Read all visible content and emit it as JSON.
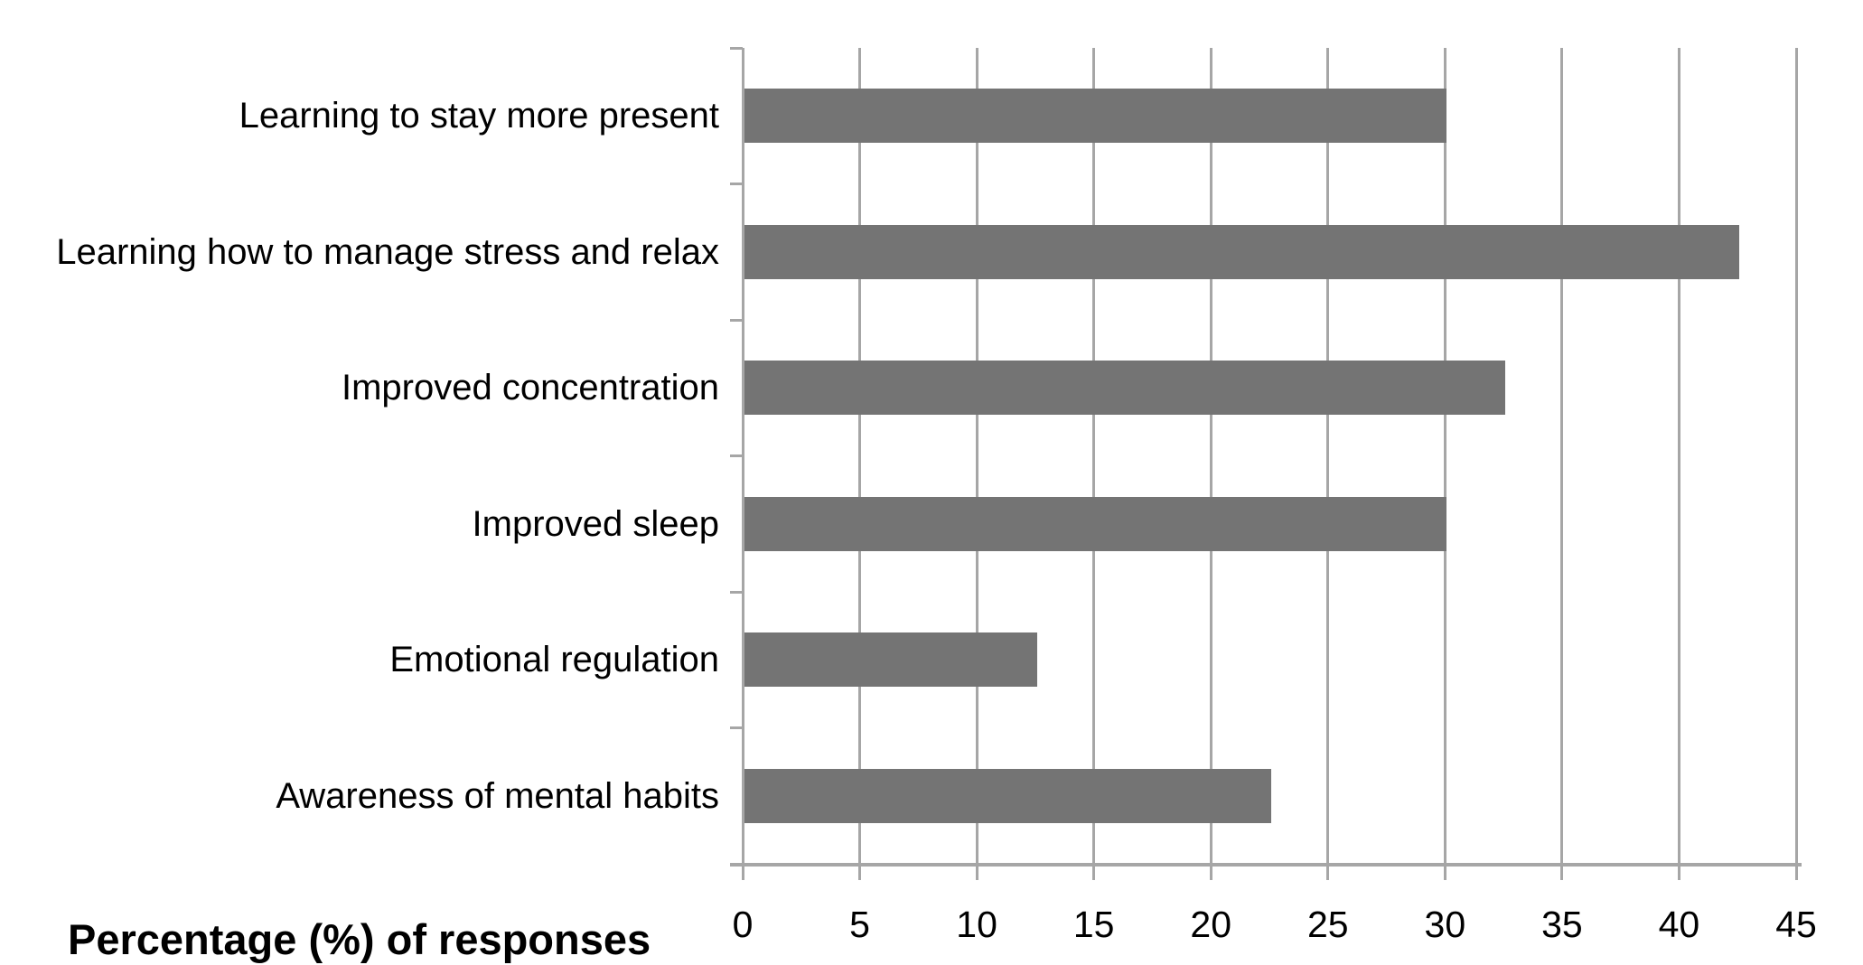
{
  "chart_data": {
    "type": "bar",
    "orientation": "horizontal",
    "categories": [
      "Learning to stay more present",
      "Learning how to manage stress and relax",
      "Improved concentration",
      "Improved sleep",
      "Emotional regulation",
      "Awareness of mental habits"
    ],
    "values": [
      30,
      42.5,
      32.5,
      30,
      12.5,
      22.5
    ],
    "xlabel": "Percentage (%) of responses",
    "xlim": [
      0,
      45
    ],
    "xticks": [
      0,
      5,
      10,
      15,
      20,
      25,
      30,
      35,
      40,
      45
    ],
    "grid": "vertical-only",
    "legend": "none",
    "title": "",
    "bar_color": "#747474",
    "axis_color": "#a6a6a6",
    "text_color": "#000000",
    "background_color": "#ffffff"
  }
}
